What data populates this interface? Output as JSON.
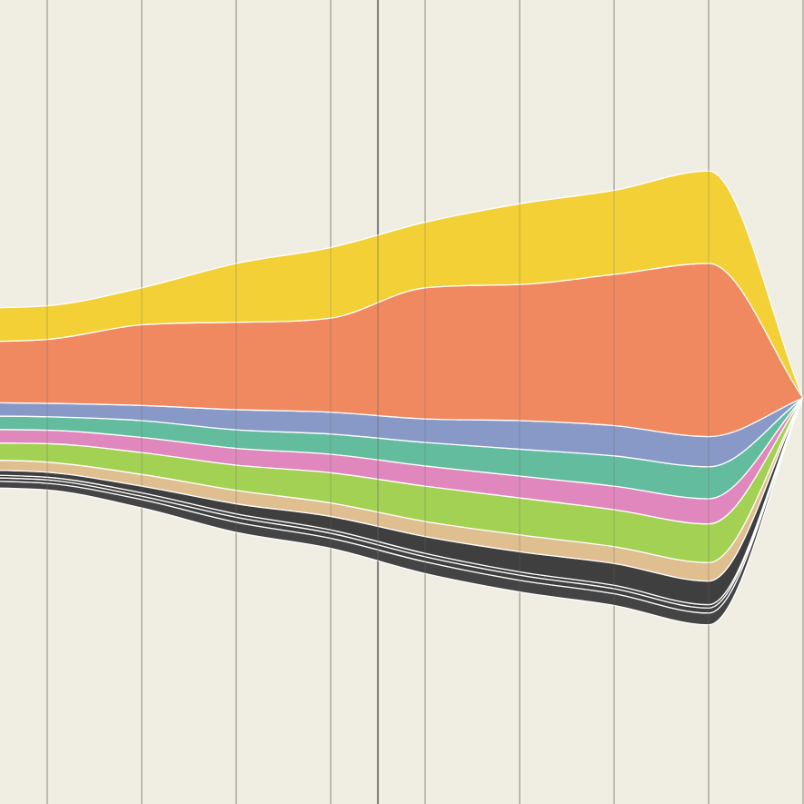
{
  "chart_data": {
    "type": "area",
    "subtype": "streamgraph",
    "offset": "symmetric",
    "interpolation": "smooth",
    "grid": "vertical",
    "legend": "none",
    "background_color": "#f0eee3",
    "x": [
      0,
      1,
      2,
      3,
      4,
      5,
      6,
      7,
      8,
      9
    ],
    "highlight_x": 4.5,
    "series": [
      {
        "color": "#444444",
        "values": [
          2.0,
          2.0,
          2.5,
          3.0,
          3.0,
          3.5,
          3.5,
          3.5,
          3.5,
          0
        ]
      },
      {
        "color": "#3f3f3f",
        "values": [
          1.0,
          1.0,
          1.0,
          1.5,
          1.5,
          1.5,
          1.5,
          1.5,
          1.5,
          0
        ]
      },
      {
        "color": "#3f3f3f",
        "values": [
          0.8,
          0.8,
          1.0,
          1.0,
          1.0,
          1.0,
          1.0,
          1.0,
          1.0,
          0
        ]
      },
      {
        "color": "#3f3f3f",
        "values": [
          1.5,
          1.5,
          2.0,
          3.0,
          4.0,
          5.0,
          6.0,
          6.5,
          7.0,
          0
        ]
      },
      {
        "color": "#dfbe8f",
        "values": [
          3.0,
          3.0,
          3.5,
          4.0,
          4.0,
          4.5,
          5.0,
          5.0,
          5.5,
          0
        ]
      },
      {
        "color": "#a3d154",
        "values": [
          5.0,
          5.5,
          6.5,
          7.5,
          9.0,
          10.5,
          11.0,
          11.0,
          11.5,
          0
        ]
      },
      {
        "color": "#e088bd",
        "values": [
          4.0,
          4.0,
          4.5,
          5.0,
          5.5,
          6.0,
          6.5,
          7.0,
          7.5,
          0
        ]
      },
      {
        "color": "#63bc9e",
        "values": [
          4.0,
          4.0,
          5.0,
          5.5,
          6.0,
          7.0,
          8.0,
          9.0,
          9.5,
          0
        ]
      },
      {
        "color": "#8899c8",
        "values": [
          4.0,
          4.0,
          4.5,
          6.0,
          6.5,
          7.0,
          8.5,
          9.0,
          9.0,
          0
        ]
      },
      {
        "color": "#f08860",
        "values": [
          18.0,
          19.0,
          24.0,
          26.0,
          28.0,
          39.0,
          40.5,
          45.0,
          51.5,
          0
        ]
      },
      {
        "color": "#f3d136",
        "values": [
          10.0,
          10.0,
          11.0,
          17.5,
          21.0,
          19.5,
          24.0,
          25.0,
          27.5,
          0
        ]
      }
    ]
  }
}
